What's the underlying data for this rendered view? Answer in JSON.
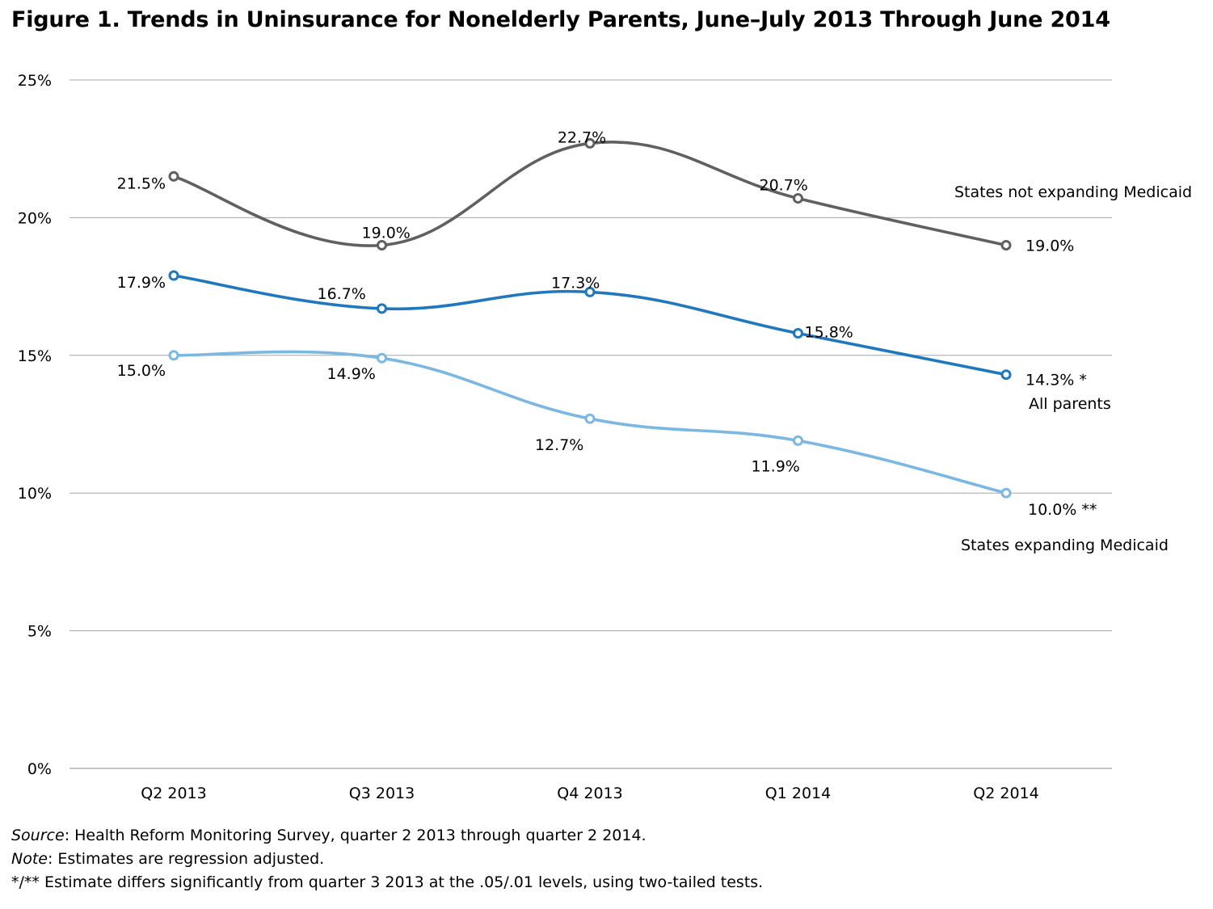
{
  "title": "Figure 1. Trends in Uninsurance for Nonelderly Parents, June–July 2013 Through June 2014",
  "chart_data": {
    "type": "line",
    "categories": [
      "Q2 2013",
      "Q3 2013",
      "Q4 2013",
      "Q1 2014",
      "Q2 2014"
    ],
    "ylim": [
      0,
      25
    ],
    "yticks": [
      "0%",
      "5%",
      "10%",
      "15%",
      "20%",
      "25%"
    ],
    "grid": true,
    "series": [
      {
        "name": "States not expanding Medicaid",
        "values": [
          21.5,
          19.0,
          22.7,
          20.7,
          19.0
        ],
        "labels": [
          "21.5%",
          "19.0%",
          "22.7%",
          "20.7%",
          "19.0%"
        ],
        "color": "#606060"
      },
      {
        "name": "All parents",
        "values": [
          17.9,
          16.7,
          17.3,
          15.8,
          14.3
        ],
        "labels": [
          "17.9%",
          "16.7%",
          "17.3%",
          "15.8%",
          "14.3% *"
        ],
        "color": "#1f78bf"
      },
      {
        "name": "States expanding Medicaid",
        "values": [
          15.0,
          14.9,
          12.7,
          11.9,
          10.0
        ],
        "labels": [
          "15.0%",
          "14.9%",
          "12.7%",
          "11.9%",
          "10.0% **"
        ],
        "color": "#7ab8e3"
      }
    ]
  },
  "notes": {
    "source_label": "Source",
    "source_text": ": Health Reform Monitoring Survey, quarter 2 2013 through quarter 2 2014.",
    "note_label": "Note",
    "note_text": ":  Estimates are regression adjusted.",
    "significance": "*/** Estimate differs significantly from quarter 3 2013 at the .05/.01 levels, using two-tailed tests."
  }
}
